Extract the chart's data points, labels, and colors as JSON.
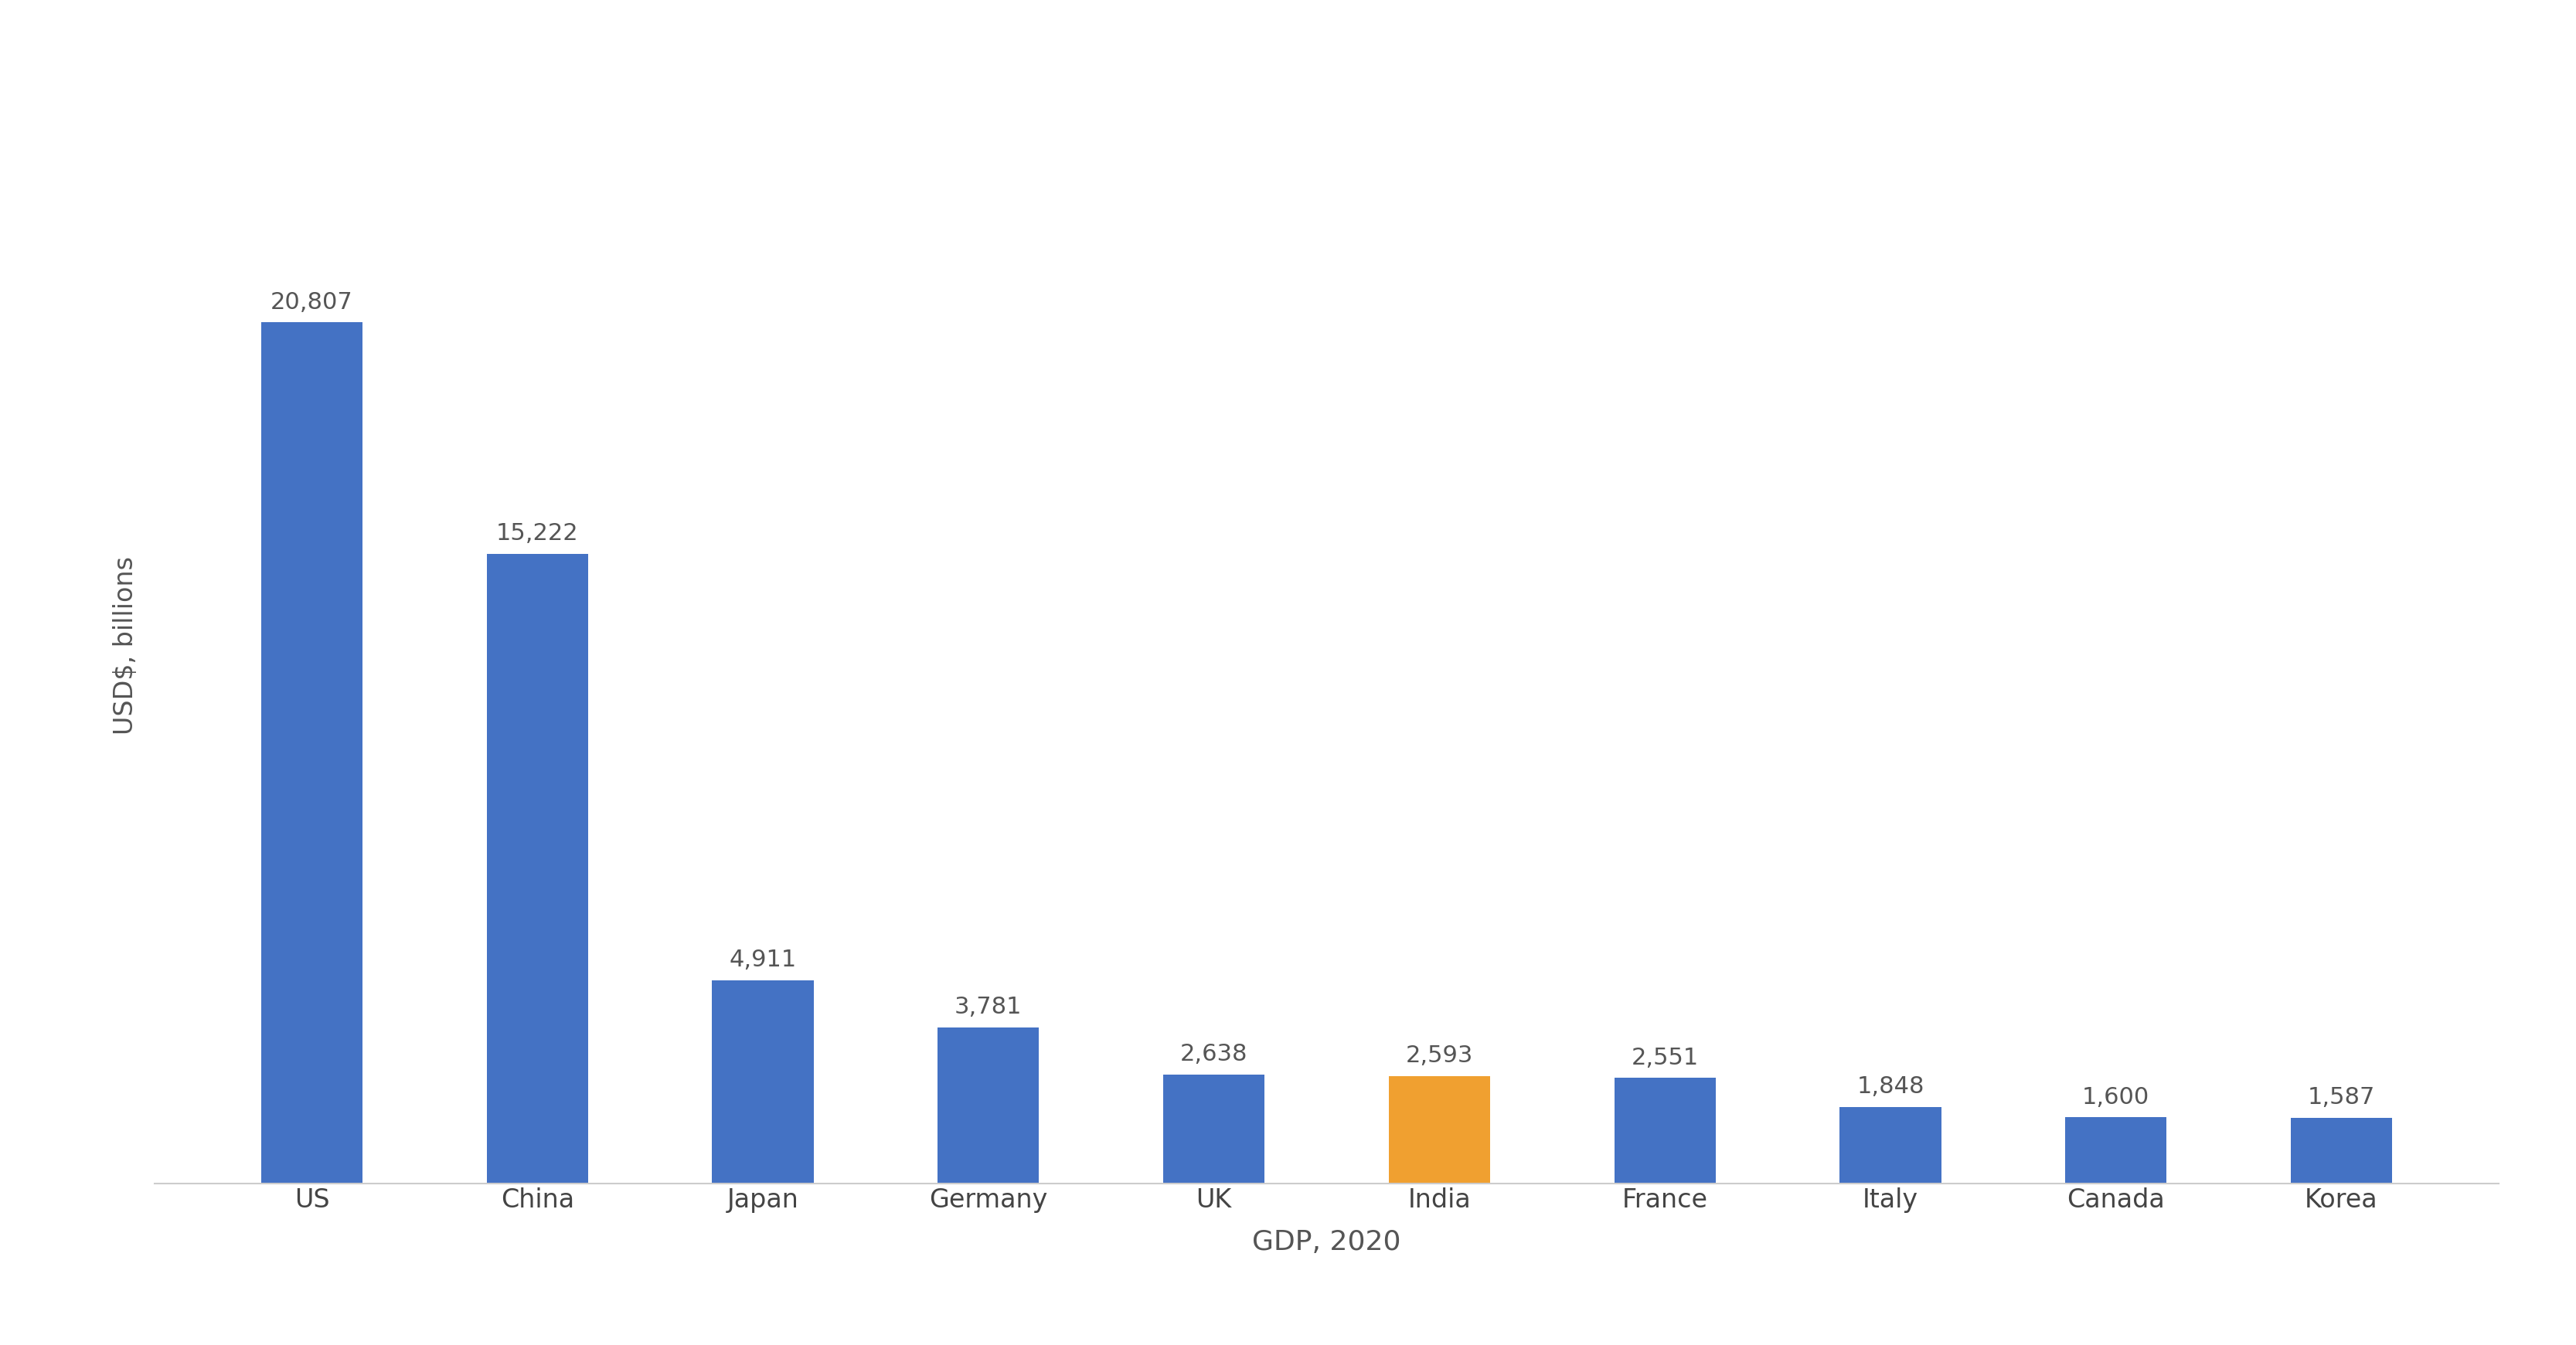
{
  "categories": [
    "US",
    "China",
    "Japan",
    "Germany",
    "UK",
    "India",
    "France",
    "Italy",
    "Canada",
    "Korea"
  ],
  "values": [
    20807,
    15222,
    4911,
    3781,
    2638,
    2593,
    2551,
    1848,
    1600,
    1587
  ],
  "bar_colors": [
    "#4472C4",
    "#4472C4",
    "#4472C4",
    "#4472C4",
    "#4472C4",
    "#F0A030",
    "#4472C4",
    "#4472C4",
    "#4472C4",
    "#4472C4"
  ],
  "xlabel": "GDP, 2020",
  "ylabel": "USD$, billions",
  "xlabel_fontsize": 26,
  "ylabel_fontsize": 24,
  "label_fontsize": 22,
  "tick_fontsize": 24,
  "background_color": "#FFFFFF",
  "bar_label_color": "#555555",
  "axis_color": "#CCCCCC",
  "ylim": [
    0,
    26000
  ]
}
